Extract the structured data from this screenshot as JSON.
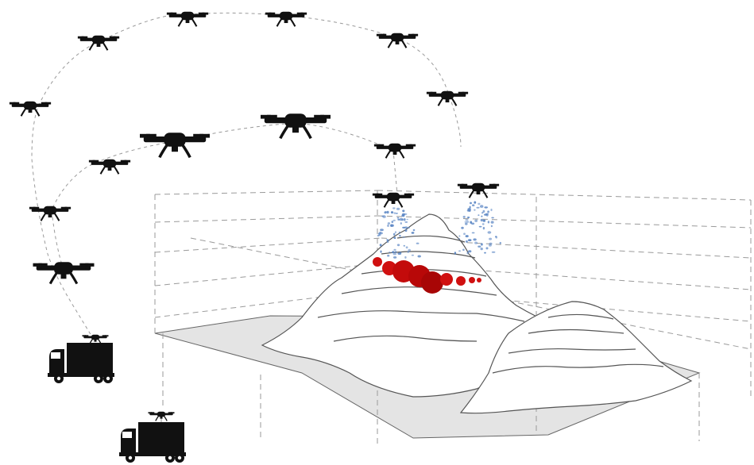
{
  "diagram": {
    "colors": {
      "drone": "#111111",
      "truck": "#111111",
      "flight_path": "#9a9a9a",
      "grid_lines": "#9a9a9a",
      "terrain_outline": "#555555",
      "ground_fill": "#e4e4e4",
      "plume_particles": "#5b86c4",
      "hotspots": "#d01010"
    },
    "icons": {
      "drone": "drone-icon",
      "truck": "truck-icon",
      "mountain": "mountain-icon",
      "plume": "plume-icon",
      "hotspot": "hotspot-icon"
    },
    "counts": {
      "drones": 16,
      "trucks": 2,
      "mountains": 2
    }
  }
}
